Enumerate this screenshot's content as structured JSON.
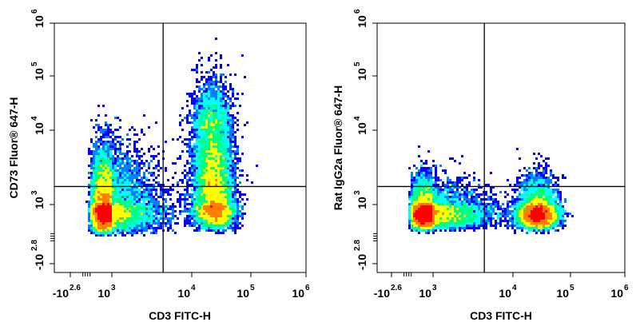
{
  "chart_data": [
    {
      "type": "scatter",
      "style": "density-pseudocolor",
      "xlabel": "CD3 FITC-H",
      "ylabel": "CD73 Fluor® 647-H",
      "x_scale": "biexponential",
      "y_scale": "biexponential",
      "x_ticks": [
        {
          "base": "-10",
          "exp": "2.6",
          "value": -398
        },
        {
          "base": "10",
          "exp": "3",
          "value": 1000
        },
        {
          "base": "10",
          "exp": "4",
          "value": 10000
        },
        {
          "base": "10",
          "exp": "5",
          "value": 100000
        },
        {
          "base": "10",
          "exp": "6",
          "value": 1000000
        }
      ],
      "y_ticks": [
        {
          "base": "-10",
          "exp": "2.8",
          "value": -631
        },
        {
          "base": "10",
          "exp": "3",
          "value": 1000
        },
        {
          "base": "10",
          "exp": "4",
          "value": 10000
        },
        {
          "base": "10",
          "exp": "5",
          "value": 100000
        },
        {
          "base": "10",
          "exp": "6",
          "value": 1000000
        }
      ],
      "quadrant_gate": {
        "x": 4500,
        "y": 1800
      },
      "populations": [
        {
          "x_center": 600,
          "y_center": 700,
          "share": 0.52,
          "spread_x": 0.38,
          "spread_y": 0.42
        },
        {
          "x_center": 22000,
          "y_center": 4500,
          "share": 0.24,
          "spread_x": 0.16,
          "spread_y": 0.55
        },
        {
          "x_center": 25000,
          "y_center": 900,
          "share": 0.24,
          "spread_x": 0.16,
          "spread_y": 0.38
        }
      ],
      "colormap": [
        "#0000ff",
        "#0080ff",
        "#00ffff",
        "#00ff80",
        "#ffff00",
        "#ff8000",
        "#ff0000"
      ]
    },
    {
      "type": "scatter",
      "style": "density-pseudocolor",
      "xlabel": "CD3 FITC-H",
      "ylabel": "Rat IgG2a Fluor® 647-H",
      "x_scale": "biexponential",
      "y_scale": "biexponential",
      "x_ticks": [
        {
          "base": "-10",
          "exp": "2.6",
          "value": -398
        },
        {
          "base": "10",
          "exp": "3",
          "value": 1000
        },
        {
          "base": "10",
          "exp": "4",
          "value": 10000
        },
        {
          "base": "10",
          "exp": "5",
          "value": 100000
        },
        {
          "base": "10",
          "exp": "6",
          "value": 1000000
        }
      ],
      "y_ticks": [
        {
          "base": "-10",
          "exp": "2.8",
          "value": -631
        },
        {
          "base": "10",
          "exp": "3",
          "value": 1000
        },
        {
          "base": "10",
          "exp": "4",
          "value": 10000
        },
        {
          "base": "10",
          "exp": "5",
          "value": 100000
        },
        {
          "base": "10",
          "exp": "6",
          "value": 1000000
        }
      ],
      "quadrant_gate": {
        "x": 4500,
        "y": 1800
      },
      "populations": [
        {
          "x_center": 550,
          "y_center": 500,
          "share": 0.58,
          "spread_x": 0.42,
          "spread_y": 0.28
        },
        {
          "x_center": 27000,
          "y_center": 500,
          "share": 0.42,
          "spread_x": 0.16,
          "spread_y": 0.28
        }
      ],
      "colormap": [
        "#0000ff",
        "#0080ff",
        "#00ffff",
        "#00ff80",
        "#ffff00",
        "#ff8000",
        "#ff0000"
      ]
    }
  ]
}
